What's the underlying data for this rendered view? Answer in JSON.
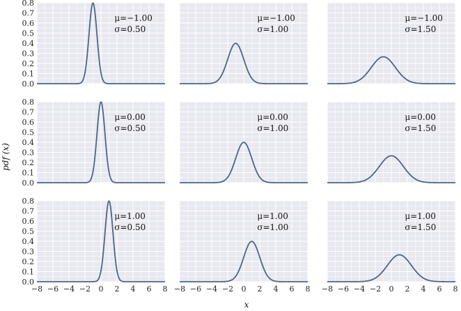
{
  "chart_data": {
    "type": "line",
    "layout": "3x3 grid of subplots, shared x and y axes",
    "xlabel": "x",
    "ylabel": "pdf (x)",
    "xlim": [
      -8,
      8
    ],
    "ylim": [
      0,
      0.8
    ],
    "xticks": [
      "−8",
      "−6",
      "−4",
      "−2",
      "0",
      "2",
      "4",
      "6",
      "8"
    ],
    "yticks": [
      "0.0",
      "0.1",
      "0.2",
      "0.3",
      "0.4",
      "0.5",
      "0.6",
      "0.7",
      "0.8"
    ],
    "grid": true,
    "background_color": "#e8e8f0",
    "line_color": "#4c6585",
    "mu_values": [
      -1.0,
      0.0,
      1.0
    ],
    "sigma_values": [
      0.5,
      1.0,
      1.5
    ],
    "panels": [
      {
        "mu": -1.0,
        "sigma": 0.5,
        "annotation": [
          "μ=−1.00",
          "σ=0.50"
        ]
      },
      {
        "mu": -1.0,
        "sigma": 1.0,
        "annotation": [
          "μ=−1.00",
          "σ=1.00"
        ]
      },
      {
        "mu": -1.0,
        "sigma": 1.5,
        "annotation": [
          "μ=−1.00",
          "σ=1.50"
        ]
      },
      {
        "mu": 0.0,
        "sigma": 0.5,
        "annotation": [
          "μ=0.00",
          "σ=0.50"
        ]
      },
      {
        "mu": 0.0,
        "sigma": 1.0,
        "annotation": [
          "μ=0.00",
          "σ=1.00"
        ]
      },
      {
        "mu": 0.0,
        "sigma": 1.5,
        "annotation": [
          "μ=0.00",
          "σ=1.50"
        ]
      },
      {
        "mu": 1.0,
        "sigma": 0.5,
        "annotation": [
          "μ=1.00",
          "σ=0.50"
        ]
      },
      {
        "mu": 1.0,
        "sigma": 1.0,
        "annotation": [
          "μ=1.00",
          "σ=1.00"
        ]
      },
      {
        "mu": 1.0,
        "sigma": 1.5,
        "annotation": [
          "μ=1.00",
          "σ=1.50"
        ]
      }
    ]
  }
}
